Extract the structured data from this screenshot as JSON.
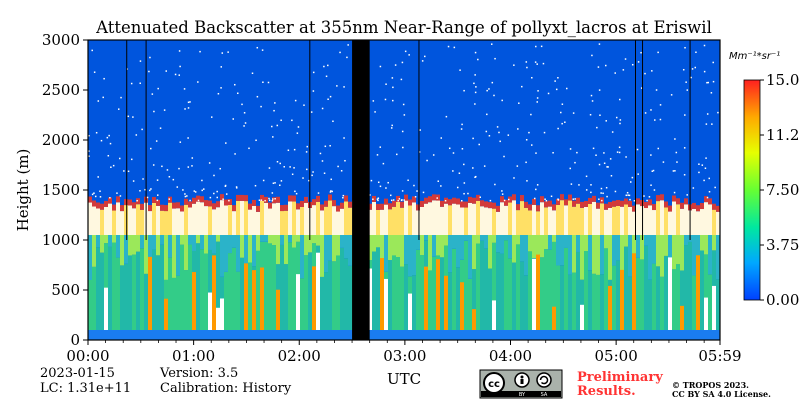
{
  "chart_data": {
    "type": "heatmap",
    "title": "Attenuated Backscatter at 355nm Near-Range of pollyxt_lacros at Eriswil",
    "xlabel": "UTC",
    "ylabel": "Height (m)",
    "x_ticks": [
      "00:00",
      "01:00",
      "02:00",
      "03:00",
      "04:00",
      "05:00",
      "05:59"
    ],
    "x_tick_minutes": [
      0,
      60,
      120,
      180,
      240,
      300,
      359
    ],
    "xlim_minutes": [
      0,
      359
    ],
    "y_ticks": [
      "0",
      "500",
      "1000",
      "1500",
      "2000",
      "2500",
      "3000"
    ],
    "y_tick_values": [
      0,
      500,
      1000,
      1500,
      2000,
      2500,
      3000
    ],
    "ylim": [
      0,
      3000
    ],
    "colorbar": {
      "unit": "Mm⁻¹*sr⁻¹",
      "ticks": [
        "0.00",
        "3.75",
        "7.50",
        "11.25",
        "15.00"
      ],
      "tick_values": [
        0,
        3.75,
        7.5,
        11.25,
        15
      ],
      "range": [
        0,
        15
      ],
      "colors": [
        "#0000ff",
        "#00aaff",
        "#00ffaa",
        "#aaff00",
        "#ffff00",
        "#ffaa00",
        "#ff0000"
      ]
    },
    "no_data_intervals_minutes": [
      [
        150,
        160
      ]
    ],
    "profile_marker_minutes": [
      22,
      33,
      126,
      188,
      311,
      315,
      342
    ],
    "cloud_layer": {
      "base_m": 1050,
      "top_m": 1400
    },
    "background_color": "#0055dd",
    "grid": false,
    "legend": "colorbar-right"
  },
  "footer": {
    "date": "2023-01-15",
    "version": "Version: 3.5",
    "lc": "LC: 1.31e+11",
    "calibration": "Calibration: History",
    "license_badge": "cc-by-sa-badge",
    "prelim_line1": "Preliminary",
    "prelim_line2": "Results.",
    "copyright_line1": "© TROPOS 2023.",
    "copyright_line2": "CC BY SA 4.0 License.",
    "badge_label_by": "BY",
    "badge_label_sa": "SA"
  }
}
